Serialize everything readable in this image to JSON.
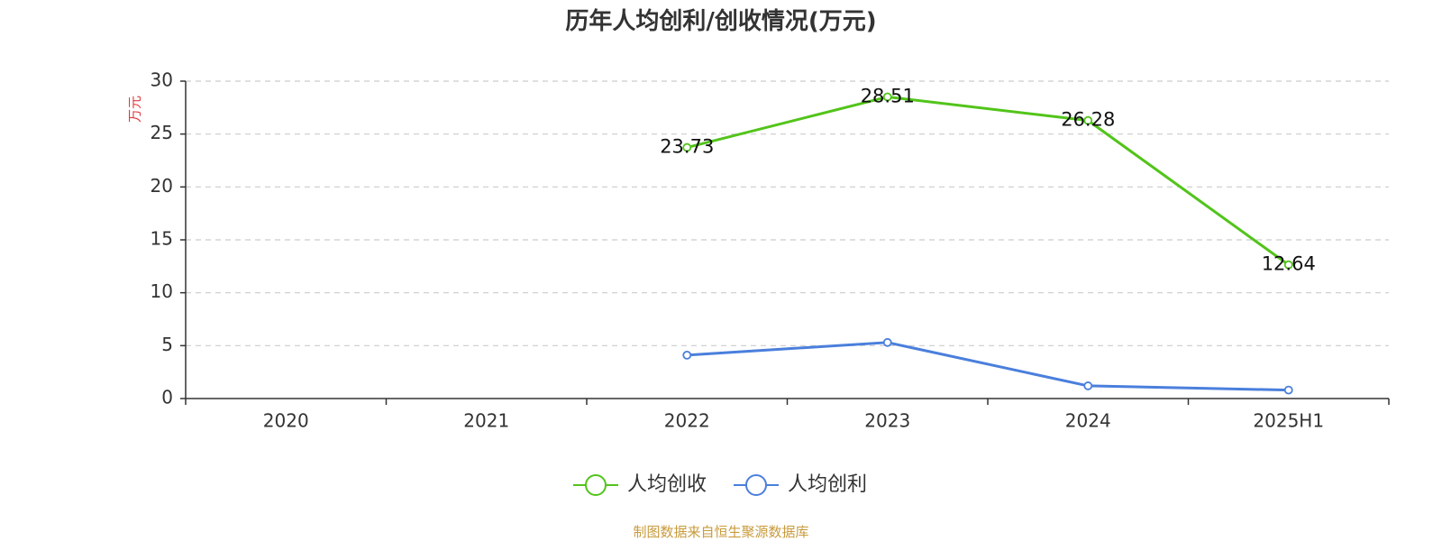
{
  "chart_data": {
    "type": "line",
    "title": "历年人均创利/创收情况(万元)",
    "ylabel": "万元",
    "categories": [
      "2020",
      "2021",
      "2022",
      "2023",
      "2024",
      "2025H1"
    ],
    "ylim": [
      0,
      30
    ],
    "yticks": [
      0,
      5,
      10,
      15,
      20,
      25,
      30
    ],
    "grid": true,
    "legend_position": "bottom",
    "series": [
      {
        "name": "人均创收",
        "color": "#52c41a",
        "values": [
          null,
          null,
          23.73,
          28.51,
          26.28,
          12.64
        ],
        "labels": [
          "",
          "",
          "23.73",
          "28.51",
          "26.28",
          "12.64"
        ]
      },
      {
        "name": "人均创利",
        "color": "#4a7fdc",
        "values": [
          null,
          null,
          4.1,
          5.3,
          1.2,
          0.8
        ]
      }
    ]
  },
  "colors": {
    "axis": "#333333",
    "grid": "#cccccc",
    "ylabel": "#e0393e",
    "source": "#c89b3c"
  },
  "footer": {
    "source": "制图数据来自恒生聚源数据库"
  }
}
